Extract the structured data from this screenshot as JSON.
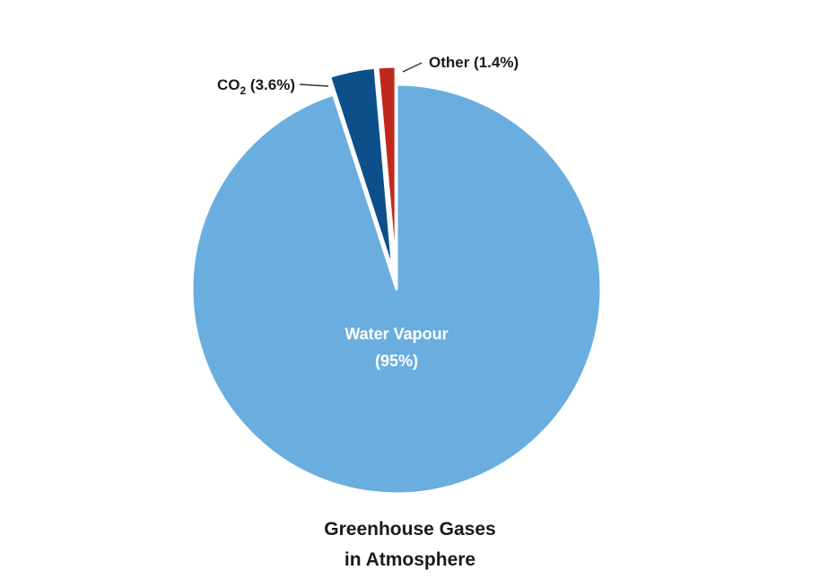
{
  "chart_data": {
    "type": "pie",
    "title": [
      "Greenhouse Gases",
      "in Atmosphere"
    ],
    "slices": [
      {
        "label": "Water Vapour",
        "value_label": "(95%)",
        "value": 95,
        "color": "#6aaedf",
        "label_position": "inside"
      },
      {
        "label": "CO",
        "subscript": "2",
        "value_label": "(3.6%)",
        "value": 3.6,
        "color": "#0d4f8b",
        "label_position": "outside-left"
      },
      {
        "label": "Other",
        "value_label": "(1.4%)",
        "value": 1.4,
        "color": "#c0281e",
        "label_position": "outside-right"
      }
    ]
  }
}
